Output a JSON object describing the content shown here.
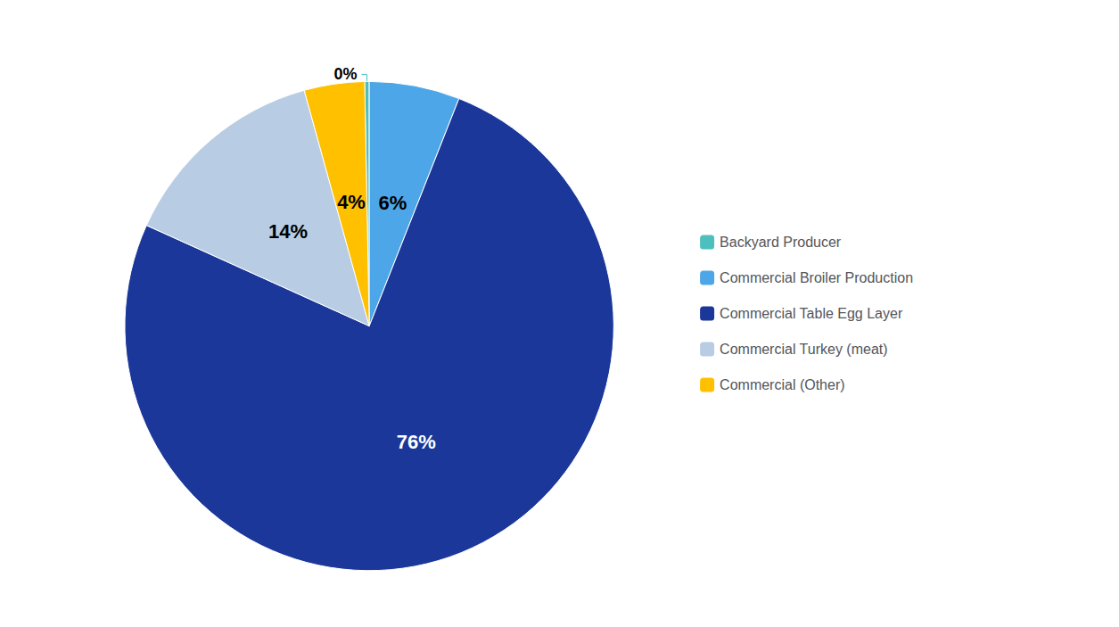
{
  "chart_data": {
    "type": "pie",
    "categories": [
      "Backyard Producer",
      "Commercial Broiler Production",
      "Commercial Table Egg Layer",
      "Commercial Turkey (meat)",
      "Commercial (Other)"
    ],
    "values": [
      0.3,
      6,
      76,
      14,
      4
    ],
    "value_labels": [
      "0%",
      "6%",
      "76%",
      "14%",
      "4%"
    ],
    "colors": [
      "#4dbfbf",
      "#4da6e8",
      "#1a3799",
      "#b8cce4",
      "#ffc000"
    ],
    "data_labels": true,
    "legend": "right"
  }
}
